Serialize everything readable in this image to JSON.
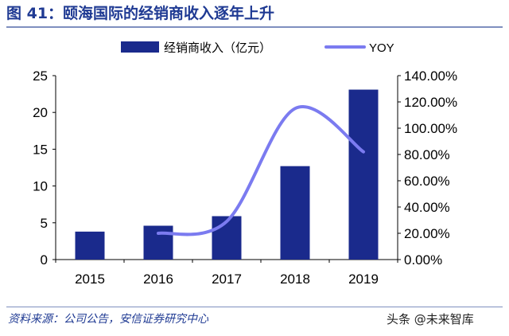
{
  "figure_title": "图 41：颐海国际的经销商收入逐年上升",
  "source_note": "资料来源：公司公告，安信证券研究中心",
  "watermark": "头条 @未来智库",
  "colors": {
    "bar": "#1a2a8c",
    "line": "#7b7bf0",
    "title": "#1f3a93",
    "axis": "#000000"
  },
  "chart_data": {
    "type": "bar",
    "categories": [
      "2015",
      "2016",
      "2017",
      "2018",
      "2019"
    ],
    "series": [
      {
        "name": "经销商收入（亿元）",
        "type": "bar",
        "axis": "left",
        "values": [
          3.8,
          4.6,
          5.9,
          12.7,
          23.1
        ]
      },
      {
        "name": "YOY",
        "type": "line",
        "axis": "right",
        "smooth": true,
        "values": [
          null,
          0.2,
          0.29,
          1.15,
          0.82
        ]
      }
    ],
    "left_axis": {
      "min": 0,
      "max": 25,
      "ticks": [
        0,
        5,
        10,
        15,
        20,
        25
      ],
      "tick_labels": [
        "0",
        "5",
        "10",
        "15",
        "20",
        "25"
      ]
    },
    "right_axis": {
      "min": 0,
      "max": 1.4,
      "ticks": [
        0,
        0.2,
        0.4,
        0.6,
        0.8,
        1.0,
        1.2,
        1.4
      ],
      "tick_labels": [
        "0.00%",
        "20.00%",
        "40.00%",
        "60.00%",
        "80.00%",
        "100.00%",
        "120.00%",
        "140.00%"
      ]
    },
    "legend": {
      "position": "top-center",
      "entries": [
        "经销商收入（亿元）",
        "YOY"
      ]
    },
    "grid": false
  }
}
